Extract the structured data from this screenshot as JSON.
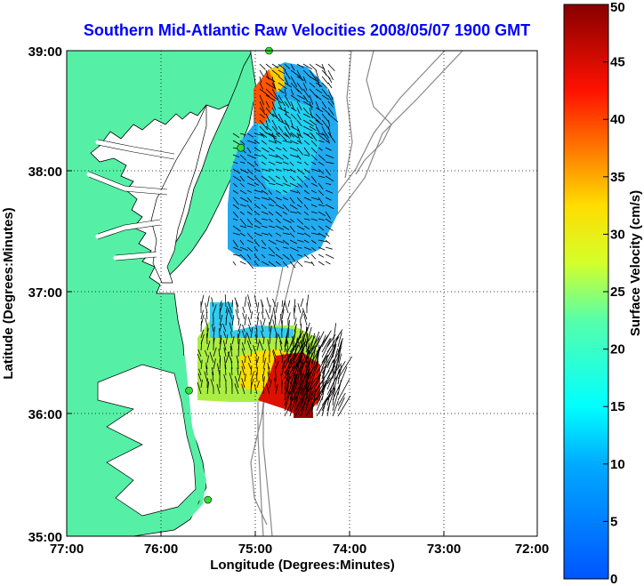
{
  "title": "Southern Mid-Atlantic Raw Velocities 2008/05/07 1900 GMT",
  "axes": {
    "x_label": "Longitude (Degrees:Minutes)",
    "y_label": "Latitude (Degrees:Minutes)",
    "x_ticks": [
      "77:00",
      "76:00",
      "75:00",
      "74:00",
      "73:00",
      "72:00"
    ],
    "y_ticks": [
      "39:00",
      "38:00",
      "37:00",
      "36:00",
      "35:00"
    ]
  },
  "colorbar": {
    "label": "Surface Velocity (cm/s)",
    "range": [
      0,
      50
    ],
    "ticks": [
      "0",
      "5",
      "10",
      "15",
      "20",
      "25",
      "30",
      "35",
      "40",
      "45",
      "50"
    ]
  },
  "colors": {
    "land": "#55f0a6",
    "title": "#0000ff",
    "bathymetry": "#888888",
    "station": "#33dd33"
  },
  "stations": [
    {
      "lon": -74.85,
      "lat": 39.0
    },
    {
      "lon": -75.15,
      "lat": 38.2
    },
    {
      "lon": -75.7,
      "lat": 36.2
    },
    {
      "lon": -75.5,
      "lat": 35.3
    }
  ]
}
